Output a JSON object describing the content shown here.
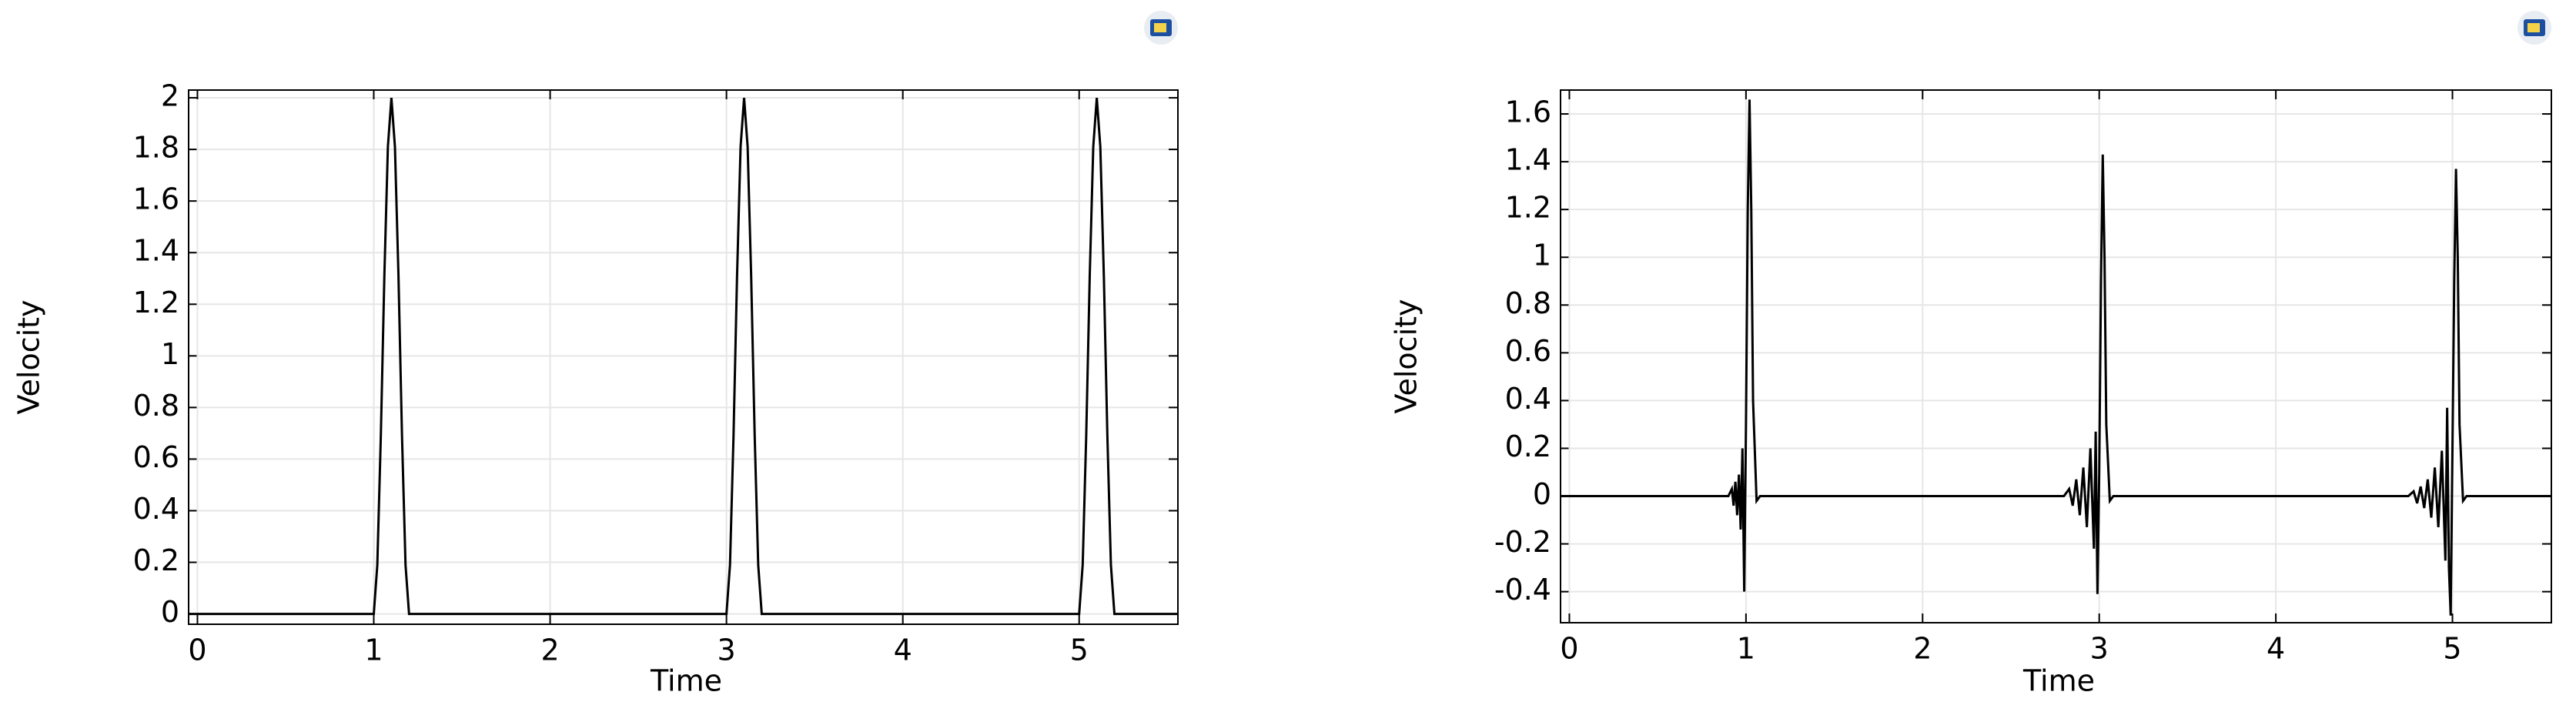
{
  "chart_data": [
    {
      "type": "line",
      "xlabel": "Time",
      "ylabel": "Velocity",
      "x": [
        -0.05,
        1.0,
        1.02,
        1.04,
        1.06,
        1.08,
        1.1,
        1.12,
        1.14,
        1.16,
        1.18,
        1.2,
        3.0,
        3.02,
        3.04,
        3.06,
        3.08,
        3.1,
        3.12,
        3.14,
        3.16,
        3.18,
        3.2,
        5.0,
        5.02,
        5.04,
        5.06,
        5.08,
        5.1,
        5.12,
        5.14,
        5.16,
        5.18,
        5.2,
        5.56
      ],
      "series": [
        {
          "color": "#000000",
          "values": [
            0,
            0,
            0.19,
            0.69,
            1.31,
            1.81,
            2,
            1.81,
            1.31,
            0.69,
            0.19,
            0,
            0,
            0.19,
            0.69,
            1.31,
            1.81,
            2,
            1.81,
            1.31,
            0.69,
            0.19,
            0,
            0,
            0.19,
            0.69,
            1.31,
            1.81,
            2,
            1.81,
            1.31,
            0.69,
            0.19,
            0,
            0
          ]
        }
      ],
      "xlim": [
        -0.05,
        5.56
      ],
      "ylim": [
        -0.04,
        2.03
      ],
      "xticks": [
        0,
        1,
        2,
        3,
        4,
        5
      ],
      "yticks": [
        0,
        0.2,
        0.4,
        0.6,
        0.8,
        1,
        1.2,
        1.4,
        1.6,
        1.8,
        2
      ],
      "grid": true
    },
    {
      "type": "line",
      "xlabel": "Time",
      "ylabel": "Velocity",
      "x": [
        -0.05,
        0.9,
        0.92,
        0.93,
        0.94,
        0.95,
        0.96,
        0.97,
        0.98,
        0.99,
        1.0,
        1.01,
        1.02,
        1.03,
        1.04,
        1.06,
        1.08,
        2.8,
        2.83,
        2.85,
        2.87,
        2.89,
        2.91,
        2.93,
        2.95,
        2.97,
        2.98,
        2.99,
        3.0,
        3.01,
        3.02,
        3.03,
        3.04,
        3.06,
        3.08,
        4.75,
        4.78,
        4.8,
        4.82,
        4.84,
        4.86,
        4.88,
        4.9,
        4.92,
        4.94,
        4.96,
        4.97,
        4.98,
        4.99,
        5.0,
        5.01,
        5.02,
        5.03,
        5.04,
        5.06,
        5.08,
        5.56
      ],
      "series": [
        {
          "color": "#000000",
          "values": [
            0,
            0,
            0.03,
            -0.04,
            0.06,
            -0.08,
            0.09,
            -0.14,
            0.2,
            -0.4,
            0.3,
            1.2,
            1.66,
            1.2,
            0.4,
            -0.02,
            0,
            0,
            0.03,
            -0.04,
            0.07,
            -0.08,
            0.12,
            -0.13,
            0.2,
            -0.22,
            0.27,
            -0.41,
            0.1,
            0.9,
            1.43,
            1.0,
            0.3,
            -0.02,
            0,
            0,
            0.02,
            -0.03,
            0.04,
            -0.05,
            0.07,
            -0.09,
            0.12,
            -0.13,
            0.19,
            -0.27,
            0.37,
            -0.3,
            -0.5,
            0.2,
            0.9,
            1.37,
            1.0,
            0.3,
            -0.02,
            0,
            0
          ]
        }
      ],
      "xlim": [
        -0.05,
        5.56
      ],
      "ylim": [
        -0.53,
        1.7
      ],
      "xticks": [
        0,
        1,
        2,
        3,
        4,
        5
      ],
      "yticks": [
        -0.4,
        -0.2,
        0,
        0.2,
        0.4,
        0.6,
        0.8,
        1,
        1.2,
        1.4,
        1.6
      ],
      "grid": true
    }
  ]
}
